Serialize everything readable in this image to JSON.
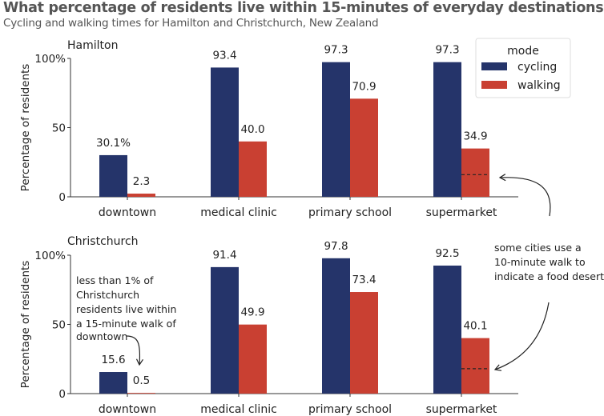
{
  "title": "What percentage of residents live within 15-minutes of everyday destinations",
  "subtitle": "Cycling and walking times for Hamilton and Christchurch, New Zealand",
  "colors": {
    "cycling": "#25346a",
    "walking": "#c94032"
  },
  "legend": {
    "title": "mode",
    "items": [
      {
        "label": "cycling",
        "series": "cycling"
      },
      {
        "label": "walking",
        "series": "walking"
      }
    ],
    "placement": "top-right"
  },
  "chart_data": [
    {
      "type": "bar",
      "title": "Hamilton",
      "xlabel": "",
      "ylabel": "Percentage of residents",
      "ylim": [
        0,
        100
      ],
      "yticks": [
        {
          "value": 0,
          "label": "0"
        },
        {
          "value": 50,
          "label": "50"
        },
        {
          "value": 100,
          "label": "100%"
        }
      ],
      "categories": [
        "downtown",
        "medical clinic",
        "primary school",
        "supermarket"
      ],
      "series": [
        {
          "name": "cycling",
          "values": [
            30.1,
            93.4,
            97.3,
            97.3
          ],
          "labels": [
            "30.1%",
            "93.4",
            "97.3",
            "97.3"
          ]
        },
        {
          "name": "walking",
          "values": [
            2.3,
            40.0,
            70.9,
            34.9
          ],
          "labels": [
            "2.3",
            "40.0",
            "70.9",
            "34.9"
          ]
        }
      ],
      "reference_line": {
        "category": "supermarket",
        "series": "walking",
        "value": 16,
        "style": "dashed"
      }
    },
    {
      "type": "bar",
      "title": "Christchurch",
      "xlabel": "",
      "ylabel": "Percentage of residents",
      "ylim": [
        0,
        100
      ],
      "yticks": [
        {
          "value": 0,
          "label": "0"
        },
        {
          "value": 50,
          "label": "50"
        },
        {
          "value": 100,
          "label": "100%"
        }
      ],
      "categories": [
        "downtown",
        "medical clinic",
        "primary school",
        "supermarket"
      ],
      "series": [
        {
          "name": "cycling",
          "values": [
            15.6,
            91.4,
            97.8,
            92.5
          ],
          "labels": [
            "15.6",
            "91.4",
            "97.8",
            "92.5"
          ]
        },
        {
          "name": "walking",
          "values": [
            0.5,
            49.9,
            73.4,
            40.1
          ],
          "labels": [
            "0.5",
            "49.9",
            "73.4",
            "40.1"
          ]
        }
      ],
      "reference_line": {
        "category": "supermarket",
        "series": "walking",
        "value": 18,
        "style": "dashed"
      }
    }
  ],
  "annotations": {
    "downtown_note": [
      "less than 1% of",
      "Christchurch",
      "residents live within",
      "a 15-minute walk of",
      "downtown"
    ],
    "food_desert_note": [
      "some cities use a",
      "10-minute walk to",
      "indicate a food desert"
    ]
  }
}
